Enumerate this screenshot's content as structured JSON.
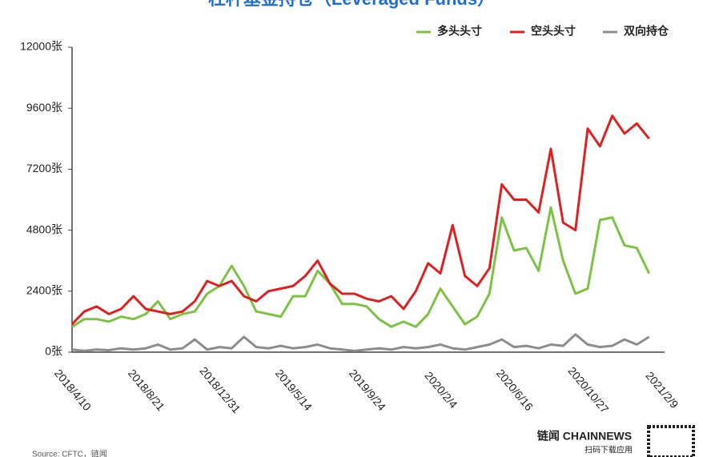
{
  "chart_data": {
    "type": "line",
    "title": "杠杆基金持仓（Leveraged Funds）",
    "source": "Source: CFTC，链闻",
    "brand": "链闻 CHAINNEWS",
    "brand_sub": "扫码下载应用",
    "categories": [
      "2018/4/10",
      null,
      null,
      null,
      null,
      null,
      "2018/8/21",
      null,
      null,
      null,
      null,
      null,
      "2018/12/31",
      null,
      null,
      null,
      null,
      null,
      "2019/5/14",
      null,
      null,
      null,
      null,
      null,
      "2019/9/24",
      null,
      null,
      null,
      null,
      null,
      "2020/2/4",
      null,
      null,
      null,
      null,
      null,
      "2020/6/16",
      null,
      null,
      null,
      null,
      null,
      "2020/10/27",
      null,
      null,
      null,
      null,
      null,
      "2021/2/9"
    ],
    "series": [
      {
        "name": "多头头寸",
        "color": "#7dc242",
        "values": [
          1000,
          1300,
          1300,
          1200,
          1400,
          1300,
          1500,
          2000,
          1300,
          1500,
          1600,
          2300,
          2600,
          3400,
          2600,
          1600,
          1500,
          1400,
          2200,
          2200,
          3200,
          2700,
          1900,
          1900,
          1800,
          1300,
          1000,
          1200,
          1000,
          1500,
          2500,
          1800,
          1100,
          1400,
          2300,
          5300,
          4000,
          4100,
          3200,
          5700,
          3600,
          2300,
          2500,
          5200,
          5300,
          4200,
          4100,
          3100,
          null
        ]
      },
      {
        "name": "空头头寸",
        "color": "#e02020",
        "values": [
          1100,
          1600,
          1800,
          1500,
          1700,
          2200,
          1700,
          1600,
          1500,
          1600,
          2000,
          2800,
          2600,
          2800,
          2200,
          2000,
          2400,
          2500,
          2600,
          3000,
          3600,
          2700,
          2300,
          2300,
          2100,
          2000,
          2200,
          1700,
          2400,
          3500,
          3100,
          5000,
          3000,
          2600,
          3300,
          6600,
          6000,
          6000,
          5500,
          8000,
          5100,
          4800,
          8800,
          8100,
          9300,
          8600,
          9000,
          8400,
          null
        ]
      },
      {
        "name": "双向持仓",
        "color": "#8c8c8c",
        "values": [
          100,
          50,
          100,
          80,
          150,
          100,
          150,
          300,
          100,
          150,
          500,
          100,
          200,
          150,
          600,
          200,
          150,
          250,
          150,
          200,
          300,
          150,
          100,
          50,
          100,
          150,
          100,
          200,
          150,
          200,
          300,
          150,
          100,
          200,
          300,
          500,
          200,
          250,
          150,
          300,
          250,
          700,
          300,
          200,
          250,
          500,
          300,
          600,
          null
        ]
      }
    ],
    "ylim": [
      0,
      12000
    ],
    "yticks": [
      {
        "value": 0,
        "label": "0张"
      },
      {
        "value": 2400,
        "label": "2400张"
      },
      {
        "value": 4800,
        "label": "4800张"
      },
      {
        "value": 7200,
        "label": "7200张"
      },
      {
        "value": 9600,
        "label": "9600张"
      },
      {
        "value": 12000,
        "label": "12000张"
      }
    ],
    "legend": "top-right"
  }
}
